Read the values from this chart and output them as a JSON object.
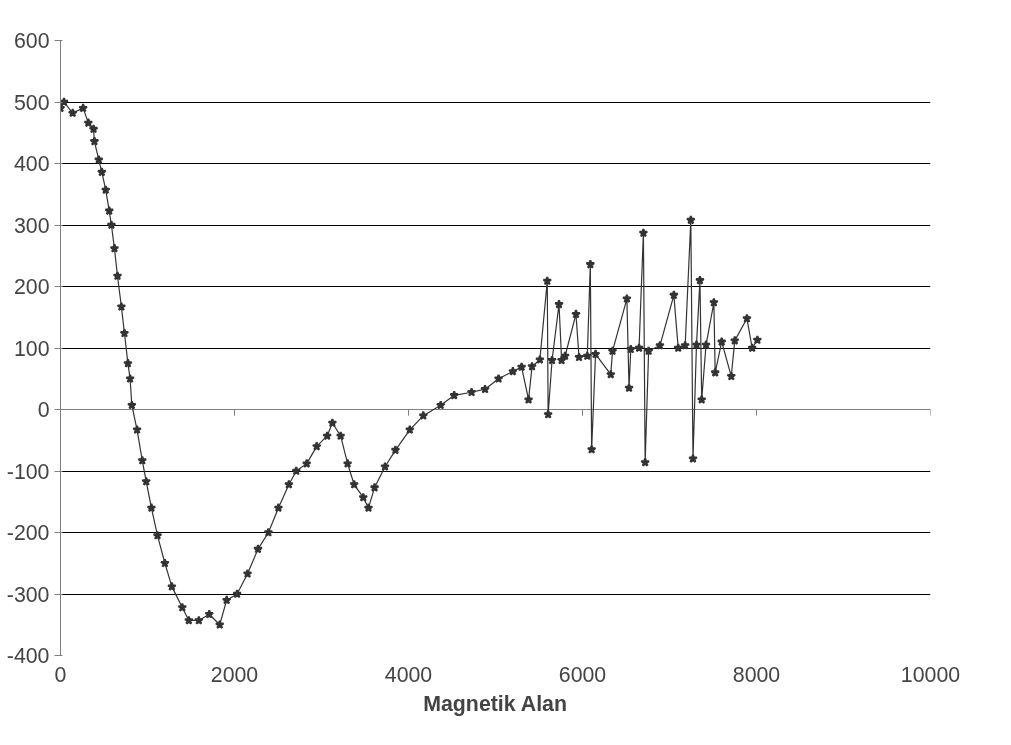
{
  "chart_data": {
    "type": "line",
    "xlabel": "Magnetik Alan",
    "marker": "star",
    "grid": "y",
    "xlim": [
      0,
      10000
    ],
    "xticks": [
      0,
      2000,
      4000,
      6000,
      8000,
      10000
    ],
    "ylim": [
      -400,
      600
    ],
    "yticks": [
      -400,
      -300,
      -200,
      -100,
      0,
      100,
      200,
      300,
      400,
      500,
      600
    ],
    "series": [
      {
        "color": "#333333",
        "x": [
          0,
          40,
          140,
          260,
          320,
          380,
          390,
          440,
          475,
          520,
          560,
          585,
          620,
          655,
          700,
          735,
          775,
          800,
          820,
          880,
          940,
          985,
          1045,
          1115,
          1200,
          1280,
          1400,
          1475,
          1590,
          1710,
          1830,
          1910,
          2030,
          2150,
          2270,
          2390,
          2505,
          2625,
          2710,
          2830,
          2945,
          3065,
          3125,
          3220,
          3300,
          3375,
          3480,
          3540,
          3610,
          3730,
          3850,
          4015,
          4170,
          4370,
          4525,
          4725,
          4880,
          5035,
          5200,
          5300,
          5380,
          5420,
          5510,
          5595,
          5605,
          5650,
          5730,
          5760,
          5800,
          5925,
          5960,
          6055,
          6090,
          6105,
          6150,
          6325,
          6345,
          6510,
          6535,
          6555,
          6650,
          6700,
          6720,
          6760,
          6890,
          7050,
          7100,
          7180,
          7245,
          7270,
          7310,
          7350,
          7370,
          7420,
          7510,
          7525,
          7600,
          7710,
          7750,
          7890,
          7950,
          8010
        ],
        "values": [
          490,
          500,
          482,
          490,
          466,
          456,
          436,
          406,
          386,
          357,
          323,
          300,
          262,
          217,
          167,
          124,
          75,
          50,
          7,
          -33,
          -83,
          -117,
          -160,
          -205,
          -250,
          -288,
          -322,
          -343,
          -343,
          -333,
          -350,
          -310,
          -300,
          -267,
          -227,
          -200,
          -160,
          -122,
          -100,
          -88,
          -60,
          -43,
          -22,
          -43,
          -88,
          -122,
          -143,
          -160,
          -127,
          -93,
          -66,
          -33,
          -10,
          7,
          23,
          28,
          33,
          50,
          62,
          69,
          16,
          70,
          81,
          209,
          -8,
          80,
          171,
          80,
          87,
          155,
          85,
          87,
          236,
          -65,
          90,
          57,
          95,
          180,
          35,
          98,
          100,
          287,
          -86,
          95,
          104,
          186,
          100,
          104,
          308,
          -80,
          105,
          210,
          16,
          105,
          174,
          60,
          110,
          54,
          112,
          148,
          100,
          113
        ]
      }
    ]
  }
}
